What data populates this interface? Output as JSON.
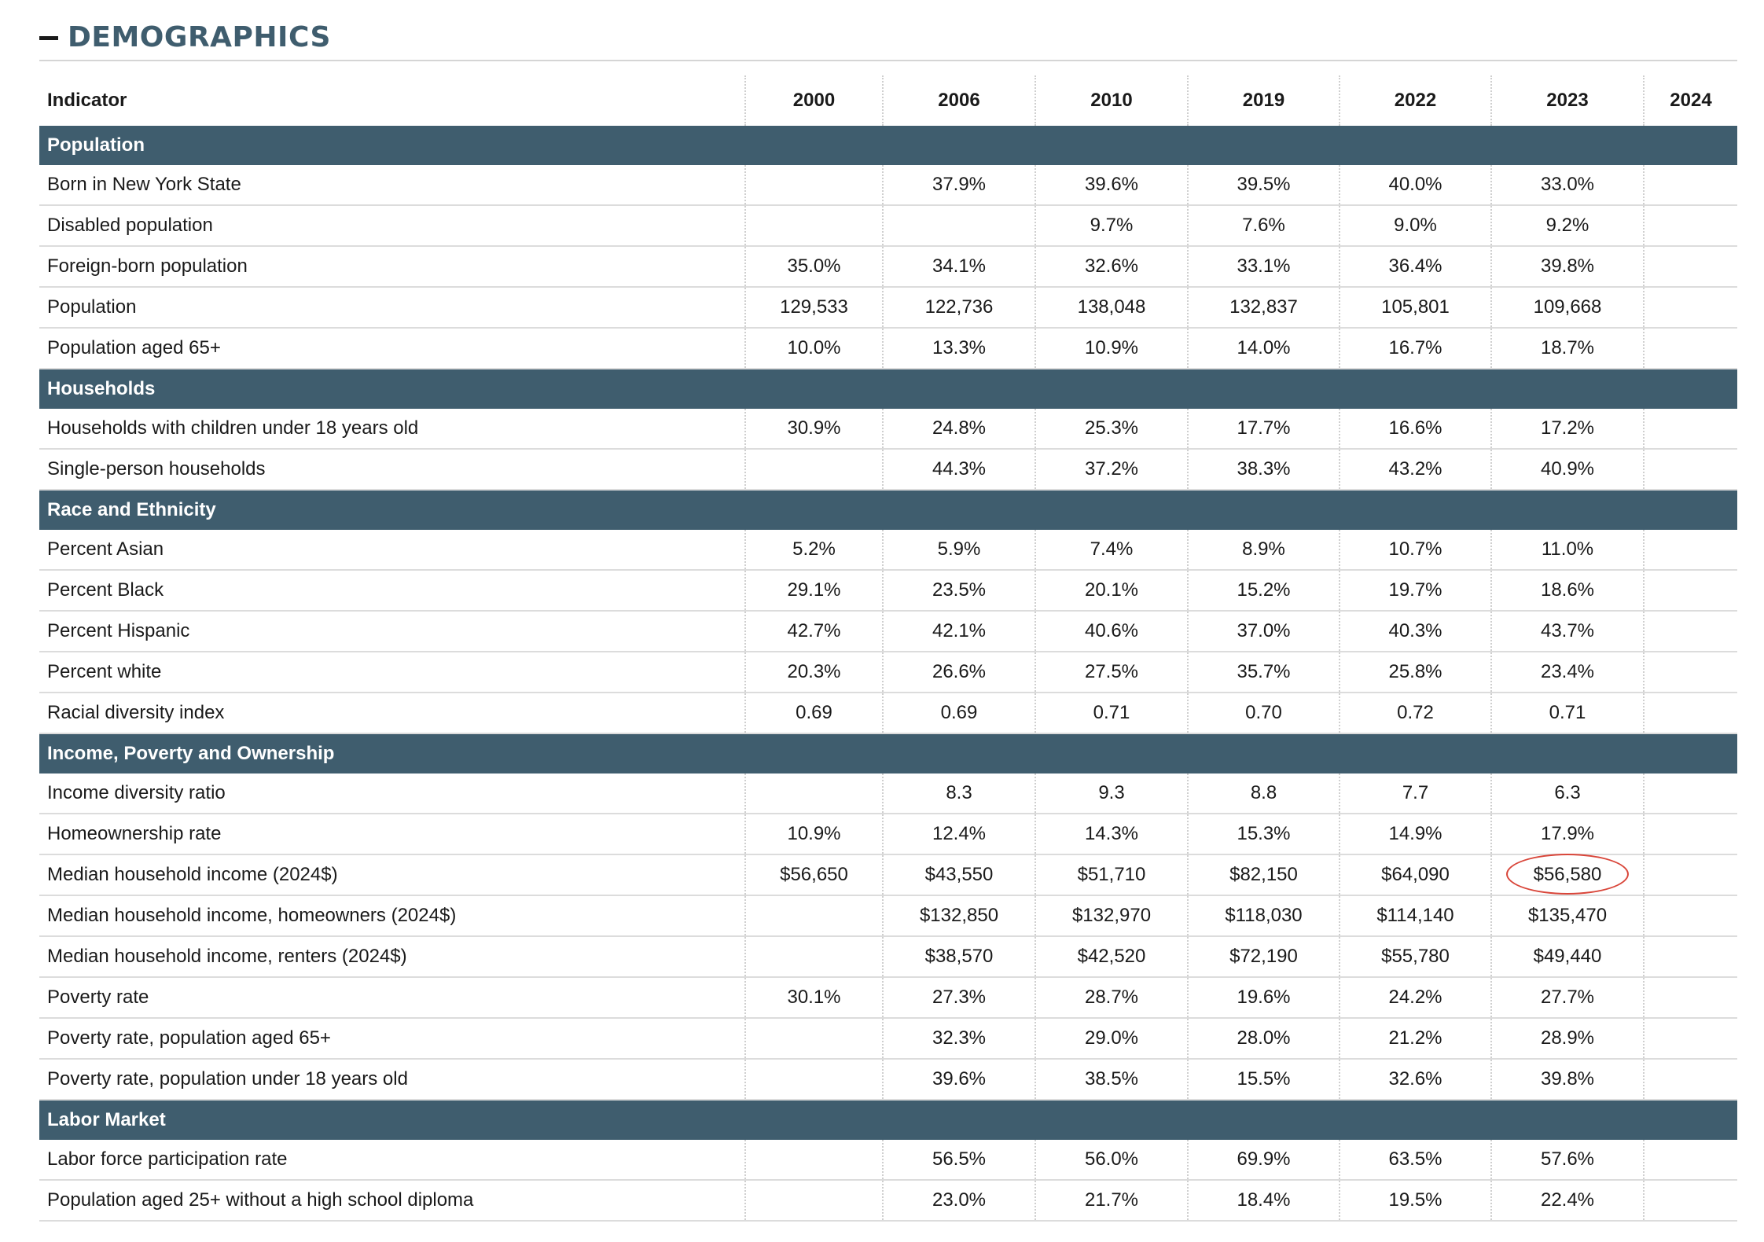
{
  "section": {
    "title": "DEMOGRAPHICS"
  },
  "table": {
    "indicator_header": "Indicator",
    "years": [
      "2000",
      "2006",
      "2010",
      "2019",
      "2022",
      "2023",
      "2024"
    ],
    "groups": [
      {
        "name": "Population",
        "rows": [
          {
            "label": "Born in New York State",
            "values": [
              "",
              "37.9%",
              "39.6%",
              "39.5%",
              "40.0%",
              "33.0%",
              ""
            ]
          },
          {
            "label": "Disabled population",
            "values": [
              "",
              "",
              "9.7%",
              "7.6%",
              "9.0%",
              "9.2%",
              ""
            ]
          },
          {
            "label": "Foreign-born population",
            "values": [
              "35.0%",
              "34.1%",
              "32.6%",
              "33.1%",
              "36.4%",
              "39.8%",
              ""
            ]
          },
          {
            "label": "Population",
            "values": [
              "129,533",
              "122,736",
              "138,048",
              "132,837",
              "105,801",
              "109,668",
              ""
            ]
          },
          {
            "label": "Population aged 65+",
            "values": [
              "10.0%",
              "13.3%",
              "10.9%",
              "14.0%",
              "16.7%",
              "18.7%",
              ""
            ]
          }
        ]
      },
      {
        "name": "Households",
        "rows": [
          {
            "label": "Households with children under 18 years old",
            "values": [
              "30.9%",
              "24.8%",
              "25.3%",
              "17.7%",
              "16.6%",
              "17.2%",
              ""
            ]
          },
          {
            "label": "Single-person households",
            "values": [
              "",
              "44.3%",
              "37.2%",
              "38.3%",
              "43.2%",
              "40.9%",
              ""
            ]
          }
        ]
      },
      {
        "name": "Race and Ethnicity",
        "rows": [
          {
            "label": "Percent Asian",
            "values": [
              "5.2%",
              "5.9%",
              "7.4%",
              "8.9%",
              "10.7%",
              "11.0%",
              ""
            ]
          },
          {
            "label": "Percent Black",
            "values": [
              "29.1%",
              "23.5%",
              "20.1%",
              "15.2%",
              "19.7%",
              "18.6%",
              ""
            ]
          },
          {
            "label": "Percent Hispanic",
            "values": [
              "42.7%",
              "42.1%",
              "40.6%",
              "37.0%",
              "40.3%",
              "43.7%",
              ""
            ]
          },
          {
            "label": "Percent white",
            "values": [
              "20.3%",
              "26.6%",
              "27.5%",
              "35.7%",
              "25.8%",
              "23.4%",
              ""
            ]
          },
          {
            "label": "Racial diversity index",
            "values": [
              "0.69",
              "0.69",
              "0.71",
              "0.70",
              "0.72",
              "0.71",
              ""
            ]
          }
        ]
      },
      {
        "name": "Income, Poverty and Ownership",
        "rows": [
          {
            "label": "Income diversity ratio",
            "values": [
              "",
              "8.3",
              "9.3",
              "8.8",
              "7.7",
              "6.3",
              ""
            ]
          },
          {
            "label": "Homeownership rate",
            "values": [
              "10.9%",
              "12.4%",
              "14.3%",
              "15.3%",
              "14.9%",
              "17.9%",
              ""
            ]
          },
          {
            "label": "Median household income (2024$)",
            "values": [
              "$56,650",
              "$43,550",
              "$51,710",
              "$82,150",
              "$64,090",
              "$56,580",
              ""
            ],
            "circled_index": 5
          },
          {
            "label": "Median household income, homeowners (2024$)",
            "values": [
              "",
              "$132,850",
              "$132,970",
              "$118,030",
              "$114,140",
              "$135,470",
              ""
            ]
          },
          {
            "label": "Median household income, renters (2024$)",
            "values": [
              "",
              "$38,570",
              "$42,520",
              "$72,190",
              "$55,780",
              "$49,440",
              ""
            ]
          },
          {
            "label": "Poverty rate",
            "values": [
              "30.1%",
              "27.3%",
              "28.7%",
              "19.6%",
              "24.2%",
              "27.7%",
              ""
            ]
          },
          {
            "label": "Poverty rate, population aged 65+",
            "values": [
              "",
              "32.3%",
              "29.0%",
              "28.0%",
              "21.2%",
              "28.9%",
              ""
            ]
          },
          {
            "label": "Poverty rate, population under 18 years old",
            "values": [
              "",
              "39.6%",
              "38.5%",
              "15.5%",
              "32.6%",
              "39.8%",
              ""
            ]
          }
        ]
      },
      {
        "name": "Labor Market",
        "rows": [
          {
            "label": "Labor force participation rate",
            "values": [
              "",
              "56.5%",
              "56.0%",
              "69.9%",
              "63.5%",
              "57.6%",
              ""
            ]
          },
          {
            "label": "Population aged 25+ without a high school diploma",
            "values": [
              "",
              "23.0%",
              "21.7%",
              "18.4%",
              "19.5%",
              "22.4%",
              ""
            ]
          }
        ]
      }
    ]
  },
  "colors": {
    "group_header_bg": "#3f5d6e",
    "title_color": "#3f5d6e",
    "highlight_circle": "#d9463a"
  }
}
